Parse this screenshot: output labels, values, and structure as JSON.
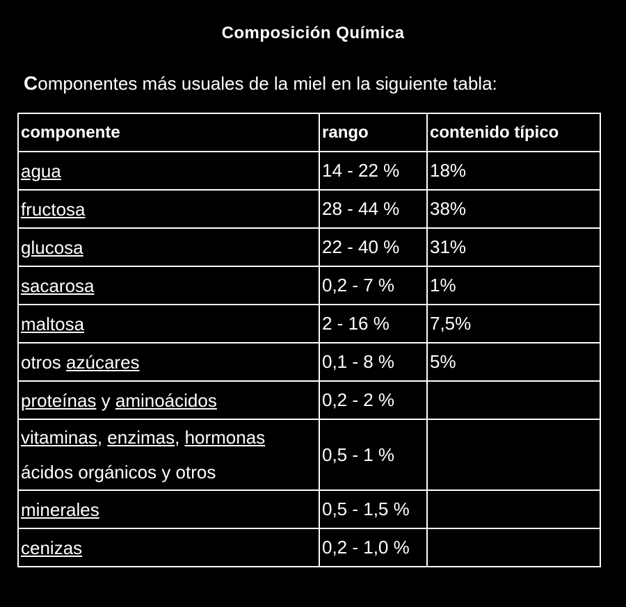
{
  "header": {
    "title": "Composición Química",
    "intro": "Componentes más usuales de la miel en la siguiente tabla:"
  },
  "table": {
    "columns": [
      "componente",
      "rango",
      "contenido típico"
    ],
    "rows": [
      [
        [
          [
            {
              "text": "agua",
              "link": true
            }
          ]
        ],
        "14 - 22 %",
        "18%"
      ],
      [
        [
          [
            {
              "text": "fructosa",
              "link": true
            }
          ]
        ],
        "28 - 44 %",
        "38%"
      ],
      [
        [
          [
            {
              "text": "glucosa",
              "link": true
            }
          ]
        ],
        "22 - 40 %",
        "31%"
      ],
      [
        [
          [
            {
              "text": "sacarosa",
              "link": true
            }
          ]
        ],
        "0,2 - 7 %",
        "1%"
      ],
      [
        [
          [
            {
              "text": "maltosa",
              "link": true
            }
          ]
        ],
        "2 - 16 %",
        "7,5%"
      ],
      [
        [
          [
            {
              "text": "otros ",
              "link": false
            },
            {
              "text": "azúcares",
              "link": true
            }
          ]
        ],
        "0,1 - 8 %",
        "5%"
      ],
      [
        [
          [
            {
              "text": "proteínas",
              "link": true
            },
            {
              "text": " y ",
              "link": false
            },
            {
              "text": "aminoácidos",
              "link": true
            }
          ]
        ],
        "0,2 - 2 %"
      ],
      [
        [
          [
            {
              "text": "vitaminas",
              "link": true
            },
            {
              "text": ", ",
              "link": false
            },
            {
              "text": "enzimas",
              "link": true
            },
            {
              "text": ", ",
              "link": false
            },
            {
              "text": "hormonas",
              "link": true
            }
          ],
          [
            {
              "text": "ácidos orgánicos y otros",
              "link": false
            }
          ]
        ],
        "0,5 - 1 %"
      ],
      [
        [
          [
            {
              "text": "minerales",
              "link": true
            }
          ]
        ],
        "0,5 - 1,5 %"
      ],
      [
        [
          [
            {
              "text": "cenizas",
              "link": true
            }
          ]
        ],
        "0,2 - 1,0 %"
      ]
    ]
  }
}
